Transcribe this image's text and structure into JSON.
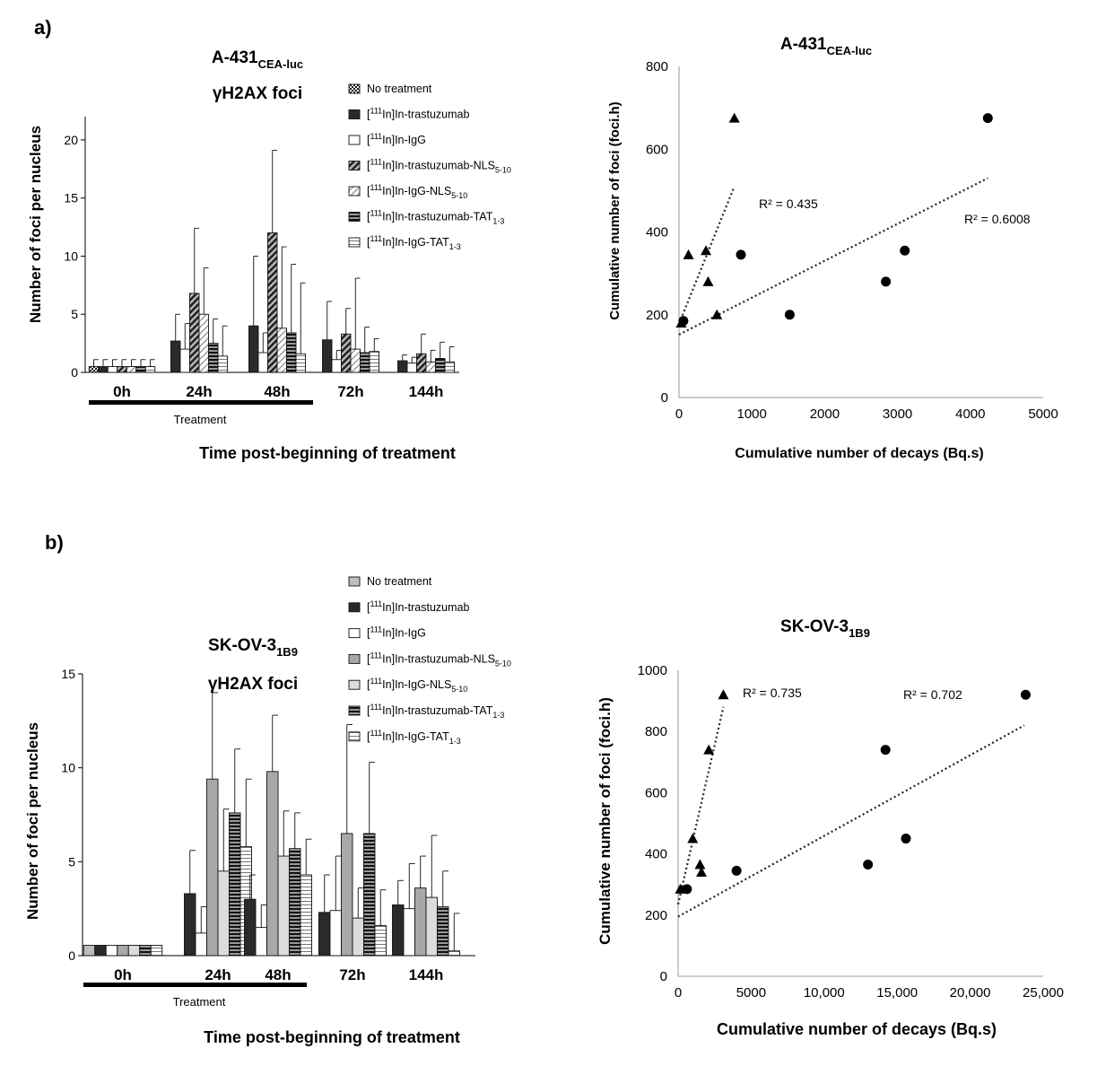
{
  "panels": [
    {
      "label": "a)",
      "bar": {
        "title_main": "A-431",
        "title_sub": "CEA-luc",
        "title_line2": "γH2AX foci",
        "ylabel": "Number of foci per nucleus",
        "xlabel": "Time post-beginning of treatment",
        "treatment_label": "Treatment",
        "ylim": [
          0,
          22
        ],
        "yticks": [
          0,
          5,
          10,
          15,
          20
        ],
        "categories": [
          "0h",
          "24h",
          "48h",
          "72h",
          "144h"
        ],
        "legend": [
          {
            "pre": "No treatment",
            "sup": "",
            "post": "",
            "sub": ""
          },
          {
            "pre": "[",
            "sup": "111",
            "post": "In]In-trastuzumab",
            "sub": ""
          },
          {
            "pre": "[",
            "sup": "111",
            "post": "In]In-IgG",
            "sub": ""
          },
          {
            "pre": "[",
            "sup": "111",
            "post": "In]In-trastuzumab-NLS",
            "sub": "5-10"
          },
          {
            "pre": "[",
            "sup": "111",
            "post": "In]In-IgG-NLS",
            "sub": "5-10"
          },
          {
            "pre": "[",
            "sup": "111",
            "post": "In]In-trastuzumab-TAT",
            "sub": "1-3"
          },
          {
            "pre": "[",
            "sup": "111",
            "post": "In]In-IgG-TAT",
            "sub": "1-3"
          }
        ],
        "series": [
          {
            "name": "No treatment",
            "values": [
              0.5,
              null,
              null,
              null,
              null
            ],
            "errors": [
              0.6,
              null,
              null,
              null,
              null
            ]
          },
          {
            "name": "[111In]In-trastuzumab",
            "values": [
              0.5,
              2.7,
              4.0,
              2.8,
              1.0
            ],
            "errors": [
              0.6,
              2.3,
              6.0,
              3.3,
              0.5
            ]
          },
          {
            "name": "[111In]In-IgG",
            "values": [
              0.5,
              2.0,
              1.7,
              1.1,
              0.8
            ],
            "errors": [
              0.6,
              2.2,
              1.7,
              0.8,
              0.5
            ]
          },
          {
            "name": "[111In]In-trastuzumab-NLS5-10",
            "values": [
              0.5,
              6.8,
              12.0,
              3.3,
              1.6
            ],
            "errors": [
              0.6,
              5.6,
              7.1,
              2.2,
              1.7
            ]
          },
          {
            "name": "[111In]In-IgG-NLS5-10",
            "values": [
              0.5,
              5.0,
              3.8,
              2.0,
              0.9
            ],
            "errors": [
              0.6,
              4.0,
              7.0,
              6.1,
              1.0
            ]
          },
          {
            "name": "[111In]In-trastuzumab-TAT1-3",
            "values": [
              0.5,
              2.5,
              3.4,
              1.7,
              1.2
            ],
            "errors": [
              0.6,
              2.1,
              5.9,
              2.2,
              1.4
            ]
          },
          {
            "name": "[111In]In-IgG-TAT1-3",
            "values": [
              0.5,
              1.4,
              1.6,
              1.8,
              0.9
            ],
            "errors": [
              0.6,
              2.6,
              6.1,
              1.1,
              1.3
            ]
          }
        ]
      },
      "scatter": {
        "title_main": "A-431",
        "title_sub": "CEA-luc",
        "ylabel": "Cumulative number of foci (foci.h)",
        "xlabel": "Cumulative number of decays (Bq.s)",
        "xlim": [
          0,
          5000
        ],
        "ylim": [
          0,
          800
        ],
        "xticks": [
          0,
          1000,
          2000,
          3000,
          4000,
          5000
        ],
        "xtick_labels": [
          "0",
          "1000",
          "2000",
          "3000",
          "4000",
          "5000"
        ],
        "yticks": [
          0,
          200,
          400,
          600,
          800
        ],
        "ytick_labels": [
          "0",
          "200",
          "400",
          "600",
          "800"
        ],
        "triangles": [
          [
            30,
            180
          ],
          [
            130,
            345
          ],
          [
            370,
            355
          ],
          [
            400,
            280
          ],
          [
            520,
            200
          ],
          [
            760,
            675
          ]
        ],
        "circles": [
          [
            60,
            185
          ],
          [
            850,
            345
          ],
          [
            1520,
            200
          ],
          [
            2840,
            280
          ],
          [
            3100,
            355
          ],
          [
            4240,
            675
          ]
        ],
        "trend_triangles": {
          "x": [
            0,
            760
          ],
          "y": [
            178,
            510
          ],
          "r2": "R² = 0.435"
        },
        "trend_circles": {
          "x": [
            0,
            4240
          ],
          "y": [
            152,
            530
          ],
          "r2": "R² = 0.6008"
        }
      }
    },
    {
      "label": "b)",
      "bar": {
        "title_main": "SK-OV-3",
        "title_sub": "1B9",
        "title_line2": "γH2AX foci",
        "ylabel": "Number of foci per nucleus",
        "xlabel": "Time post-beginning of treatment",
        "treatment_label": "Treatment",
        "ylim": [
          0,
          15
        ],
        "yticks": [
          0,
          5,
          10,
          15
        ],
        "categories": [
          "0h",
          "24h",
          "48h",
          "72h",
          "144h"
        ],
        "legend": [
          {
            "pre": "No treatment",
            "sup": "",
            "post": "",
            "sub": ""
          },
          {
            "pre": "[",
            "sup": "111",
            "post": "In]In-trastuzumab",
            "sub": ""
          },
          {
            "pre": "[",
            "sup": "111",
            "post": "In]In-IgG",
            "sub": ""
          },
          {
            "pre": "[",
            "sup": "111",
            "post": "In]In-trastuzumab-NLS",
            "sub": "5-10"
          },
          {
            "pre": "[",
            "sup": "111",
            "post": "In]In-IgG-NLS",
            "sub": "5-10"
          },
          {
            "pre": "[",
            "sup": "111",
            "post": "In]In-trastuzumab-TAT",
            "sub": "1-3"
          },
          {
            "pre": "[",
            "sup": "111",
            "post": "In]In-IgG-TAT",
            "sub": "1-3"
          }
        ],
        "series": [
          {
            "name": "No treatment",
            "values": [
              0.55,
              null,
              null,
              null,
              null
            ],
            "errors": [
              null,
              null,
              null,
              null,
              null
            ]
          },
          {
            "name": "[111In]In-trastuzumab",
            "values": [
              0.55,
              3.3,
              3.0,
              2.3,
              2.7
            ],
            "errors": [
              null,
              2.3,
              1.3,
              2.0,
              1.3
            ]
          },
          {
            "name": "[111In]In-IgG",
            "values": [
              0.55,
              1.2,
              1.5,
              2.4,
              2.5
            ],
            "errors": [
              null,
              1.4,
              1.2,
              2.9,
              2.4
            ]
          },
          {
            "name": "[111In]In-trastuzumab-NLS5-10",
            "values": [
              0.55,
              9.4,
              9.8,
              6.5,
              3.6
            ],
            "errors": [
              null,
              4.6,
              3.0,
              5.8,
              1.7
            ]
          },
          {
            "name": "[111In]In-IgG-NLS5-10",
            "values": [
              0.55,
              4.5,
              5.3,
              2.0,
              3.1
            ],
            "errors": [
              null,
              3.3,
              2.4,
              1.6,
              3.3
            ]
          },
          {
            "name": "[111In]In-trastuzumab-TAT1-3",
            "values": [
              0.55,
              7.6,
              5.7,
              6.5,
              2.6
            ],
            "errors": [
              null,
              3.4,
              1.9,
              3.8,
              1.9
            ]
          },
          {
            "name": "[111In]In-IgG-TAT1-3",
            "values": [
              0.55,
              5.8,
              4.3,
              1.6,
              0.25
            ],
            "errors": [
              null,
              3.6,
              1.9,
              1.9,
              2.0
            ]
          }
        ]
      },
      "scatter": {
        "title_main": "SK-OV-3",
        "title_sub": "1B9",
        "ylabel": "Cumulative number of foci (foci.h)",
        "xlabel": "Cumulative number of decays (Bq.s)",
        "xlim": [
          0,
          25000
        ],
        "ylim": [
          0,
          1000
        ],
        "xticks": [
          0,
          5000,
          10000,
          15000,
          20000,
          25000
        ],
        "xtick_labels": [
          "0",
          "5000",
          "10,000",
          "15,000",
          "20,000",
          "25,000"
        ],
        "yticks": [
          0,
          200,
          400,
          600,
          800,
          1000
        ],
        "ytick_labels": [
          "0",
          "200",
          "400",
          "600",
          "800",
          "1000"
        ],
        "triangles": [
          [
            150,
            285
          ],
          [
            1000,
            450
          ],
          [
            1500,
            365
          ],
          [
            1600,
            340
          ],
          [
            2100,
            740
          ],
          [
            3100,
            920
          ]
        ],
        "circles": [
          [
            600,
            285
          ],
          [
            4000,
            345
          ],
          [
            13000,
            365
          ],
          [
            14200,
            740
          ],
          [
            15600,
            450
          ],
          [
            23800,
            920
          ]
        ],
        "trend_triangles": {
          "x": [
            0,
            3100
          ],
          "y": [
            235,
            880
          ],
          "r2": "R² = 0.735"
        },
        "trend_circles": {
          "x": [
            0,
            23700
          ],
          "y": [
            195,
            820
          ],
          "r2": "R² = 0.702"
        }
      }
    }
  ],
  "chart_data": [
    {
      "type": "bar",
      "title": "A-431 CEA-luc γH2AX foci",
      "ylabel": "Number of foci per nucleus",
      "xlabel": "Time post-beginning of treatment",
      "categories": [
        "0h",
        "24h",
        "48h",
        "72h",
        "144h"
      ],
      "ylim": [
        0,
        22
      ]
    },
    {
      "type": "scatter",
      "title": "A-431 CEA-luc",
      "xlabel": "Cumulative number of decays (Bq.s)",
      "ylabel": "Cumulative number of foci (foci.h)",
      "xlim": [
        0,
        5000
      ],
      "ylim": [
        0,
        800
      ]
    },
    {
      "type": "bar",
      "title": "SK-OV-3 1B9 γH2AX foci",
      "ylabel": "Number of foci per nucleus",
      "xlabel": "Time post-beginning of treatment",
      "categories": [
        "0h",
        "24h",
        "48h",
        "72h",
        "144h"
      ],
      "ylim": [
        0,
        15
      ]
    },
    {
      "type": "scatter",
      "title": "SK-OV-3 1B9",
      "xlabel": "Cumulative number of decays (Bq.s)",
      "ylabel": "Cumulative number of foci (foci.h)",
      "xlim": [
        0,
        25000
      ],
      "ylim": [
        0,
        1000
      ]
    }
  ]
}
